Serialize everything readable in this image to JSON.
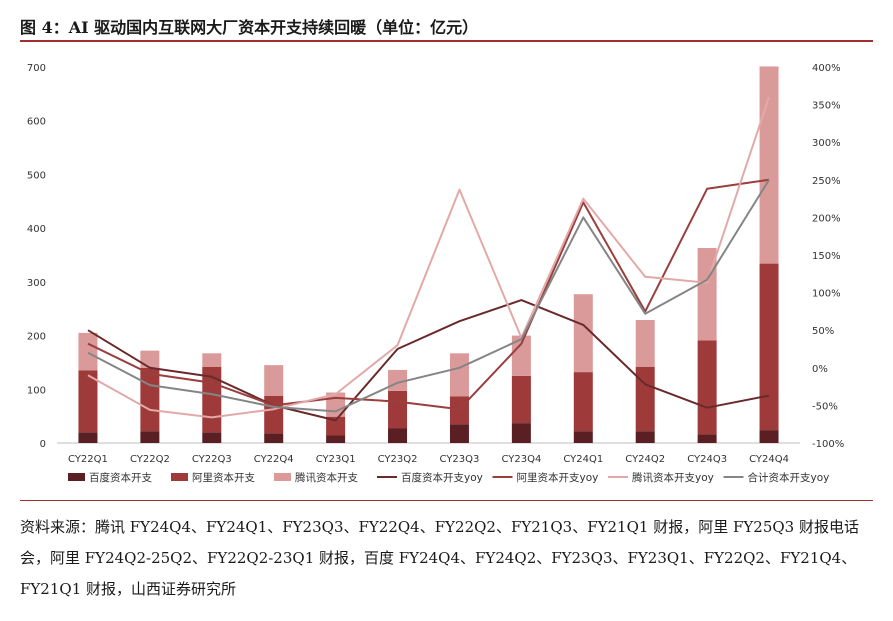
{
  "title": "图 4：AI 驱动国内互联网大厂资本开支持续回暖（单位：亿元）",
  "source": "资料来源：腾讯 FY24Q4、FY24Q1、FY23Q3、FY22Q4、FY22Q2、FY21Q3、FY21Q1 财报，阿里 FY25Q3 财报电话会，阿里 FY24Q2-25Q2、FY22Q2-23Q1 财报，百度 FY24Q4、FY24Q2、FY23Q3、FY23Q1、FY22Q2、FY21Q4、FY21Q1 财报，山西证券研究所",
  "chart_data": {
    "type": "bar",
    "categories": [
      "CY22Q1",
      "CY22Q2",
      "CY22Q3",
      "CY22Q4",
      "CY23Q1",
      "CY23Q2",
      "CY23Q3",
      "CY23Q4",
      "CY24Q1",
      "CY24Q2",
      "CY24Q3",
      "CY24Q4"
    ],
    "ylim": [
      0,
      700
    ],
    "y_ticks": [
      "0",
      "100",
      "200",
      "300",
      "400",
      "500",
      "600",
      "700"
    ],
    "y2lim": [
      -100,
      400
    ],
    "y2_ticks": [
      "-100%",
      "-50%",
      "0%",
      "50%",
      "100%",
      "150%",
      "200%",
      "250%",
      "300%",
      "350%",
      "400%"
    ],
    "bar_series": [
      {
        "name": "百度资本开支",
        "color": "#5a1f22",
        "values": [
          20,
          22,
          20,
          18,
          14,
          27,
          35,
          37,
          22,
          22,
          16,
          24
        ]
      },
      {
        "name": "阿里资本开支",
        "color": "#9e3a3a",
        "values": [
          115,
          118,
          122,
          70,
          35,
          70,
          52,
          88,
          110,
          120,
          175,
          310
        ]
      },
      {
        "name": "腾讯资本开支",
        "color": "#db9a9a",
        "values": [
          70,
          32,
          25,
          57,
          45,
          39,
          80,
          75,
          145,
          87,
          172,
          367
        ]
      }
    ],
    "line_series": [
      {
        "name": "百度资本开支yoy",
        "color": "#6a2a2b",
        "values": [
          50,
          0,
          -12,
          -50,
          -70,
          25,
          62,
          90,
          57,
          -22,
          -53,
          -37
        ]
      },
      {
        "name": "阿里资本开支yoy",
        "color": "#9a3e3e",
        "values": [
          32,
          -8,
          -20,
          -50,
          -40,
          -45,
          -55,
          32,
          220,
          75,
          238,
          250
        ]
      },
      {
        "name": "腾讯资本开支yoy",
        "color": "#e3a9a9",
        "values": [
          -10,
          -56,
          -66,
          -55,
          -35,
          30,
          237,
          40,
          225,
          121,
          113,
          360
        ]
      },
      {
        "name": "合计资本开支yoy",
        "color": "#858585",
        "values": [
          20,
          -23,
          -35,
          -52,
          -58,
          -20,
          0,
          38,
          200,
          72,
          117,
          250
        ]
      }
    ],
    "grid": false,
    "legend_position": "bottom"
  }
}
